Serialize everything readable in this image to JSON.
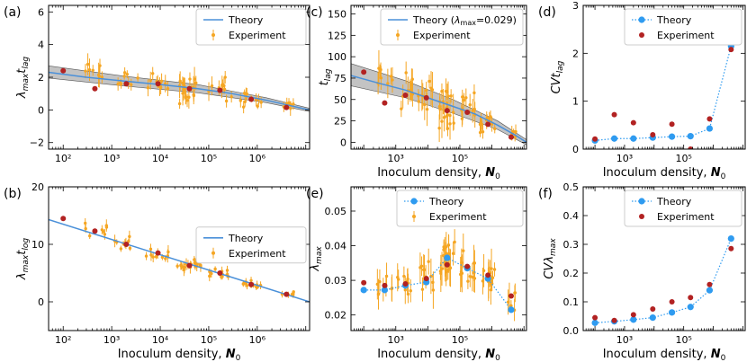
{
  "figure": {
    "colors": {
      "theory": "#4a90d9",
      "experiment": "#f5a623",
      "mean": "#b22222",
      "band": "#a9a9a9",
      "theory_marker": "#2f9bf0"
    }
  },
  "chart_data": [
    {
      "id": "a",
      "panel_label": "(a)",
      "type": "scatter",
      "xscale": "log",
      "xlim": [
        50,
        12000000
      ],
      "ylim": [
        -2.4,
        6.4
      ],
      "xticks": [
        100,
        1000,
        10000,
        100000,
        1000000
      ],
      "xticklabels": [
        "10²",
        "10³",
        "10⁴",
        "10⁵",
        "10⁶"
      ],
      "yticks": [
        -2,
        0,
        2,
        4,
        6
      ],
      "yticklabels": [
        "−2",
        "0",
        "2",
        "4",
        "6"
      ],
      "xlabel": "",
      "ylabel": "λmax tlag",
      "legend_position": "top-right",
      "legend": [
        "Theory",
        "Experiment"
      ],
      "theory": {
        "x": [
          50,
          300,
          2000,
          10000,
          60000,
          300000,
          1500000,
          5000000,
          12000000
        ],
        "y": [
          2.3,
          2.0,
          1.75,
          1.55,
          1.3,
          1.0,
          0.6,
          0.25,
          0.0
        ]
      },
      "band": {
        "x": [
          50,
          2000,
          60000,
          1500000,
          12000000
        ],
        "lower": [
          1.95,
          1.45,
          1.05,
          0.45,
          -0.1
        ],
        "upper": [
          2.7,
          2.05,
          1.55,
          0.75,
          0.1
        ]
      },
      "means": {
        "x": [
          100,
          450,
          2000,
          9000,
          40000,
          170000,
          750000,
          4000000
        ],
        "y": [
          2.4,
          1.3,
          1.6,
          1.6,
          1.3,
          1.2,
          0.65,
          0.15
        ]
      },
      "experiment_clusters": [
        {
          "center_x": 450,
          "center_y": 2.2,
          "count": 8,
          "spread_x": 0.25,
          "spread_y": 0.9,
          "error": 0.5
        },
        {
          "center_x": 2000,
          "center_y": 1.8,
          "count": 9,
          "spread_x": 0.25,
          "spread_y": 0.7,
          "error": 0.4
        },
        {
          "center_x": 9000,
          "center_y": 1.6,
          "count": 10,
          "spread_x": 0.25,
          "spread_y": 0.8,
          "error": 0.4
        },
        {
          "center_x": 40000,
          "center_y": 1.2,
          "count": 20,
          "spread_x": 0.25,
          "spread_y": 1.1,
          "error": 0.5
        },
        {
          "center_x": 170000,
          "center_y": 1.3,
          "count": 12,
          "spread_x": 0.25,
          "spread_y": 0.9,
          "error": 0.4
        },
        {
          "center_x": 750000,
          "center_y": 0.6,
          "count": 12,
          "spread_x": 0.25,
          "spread_y": 0.6,
          "error": 0.3
        },
        {
          "center_x": 4000000,
          "center_y": 0.3,
          "count": 6,
          "spread_x": 0.15,
          "spread_y": 0.4,
          "error": 0.3
        }
      ]
    },
    {
      "id": "b",
      "panel_label": "(b)",
      "type": "scatter",
      "xscale": "log",
      "xlim": [
        50,
        12000000
      ],
      "ylim": [
        -5,
        20
      ],
      "xticks": [
        100,
        1000,
        10000,
        100000,
        1000000
      ],
      "xticklabels": [
        "10²",
        "10³",
        "10⁴",
        "10⁵",
        "10⁶"
      ],
      "yticks": [
        0,
        10,
        20
      ],
      "yticklabels": [
        "0",
        "10",
        "20"
      ],
      "xlabel": "Inoculum density, N0",
      "ylabel": "λmax tlog",
      "legend_position": "center-right",
      "legend": [
        "Theory",
        "Experiment"
      ],
      "theory": {
        "x": [
          50,
          12000000
        ],
        "y": [
          14.3,
          0.0
        ]
      },
      "means": {
        "x": [
          100,
          450,
          2000,
          9000,
          40000,
          170000,
          750000,
          4000000
        ],
        "y": [
          14.5,
          12.3,
          10.0,
          8.5,
          6.3,
          5.0,
          3.0,
          1.3
        ]
      },
      "experiment_clusters": [
        {
          "center_x": 450,
          "center_y": 12.5,
          "count": 8,
          "spread_x": 0.25,
          "spread_y": 1.5,
          "error": 0.8
        },
        {
          "center_x": 2000,
          "center_y": 10.2,
          "count": 9,
          "spread_x": 0.25,
          "spread_y": 1.5,
          "error": 0.8
        },
        {
          "center_x": 9000,
          "center_y": 8.5,
          "count": 10,
          "spread_x": 0.25,
          "spread_y": 1.3,
          "error": 0.8
        },
        {
          "center_x": 40000,
          "center_y": 6.5,
          "count": 20,
          "spread_x": 0.25,
          "spread_y": 1.2,
          "error": 0.8
        },
        {
          "center_x": 170000,
          "center_y": 5.0,
          "count": 12,
          "spread_x": 0.25,
          "spread_y": 1.0,
          "error": 0.6
        },
        {
          "center_x": 750000,
          "center_y": 3.0,
          "count": 12,
          "spread_x": 0.25,
          "spread_y": 0.8,
          "error": 0.5
        },
        {
          "center_x": 4000000,
          "center_y": 1.3,
          "count": 6,
          "spread_x": 0.15,
          "spread_y": 0.5,
          "error": 0.4
        }
      ]
    },
    {
      "id": "c",
      "panel_label": "(c)",
      "type": "scatter",
      "xscale": "log",
      "xlim": [
        40,
        12000000
      ],
      "ylim": [
        -8,
        160
      ],
      "xticks": [
        1000,
        100000
      ],
      "xticklabels": [
        "10³",
        "10⁵"
      ],
      "yticks": [
        0,
        25,
        50,
        75,
        100,
        125,
        150
      ],
      "yticklabels": [
        "0",
        "25",
        "50",
        "75",
        "100",
        "125",
        "150"
      ],
      "xlabel": "Inoculum density, N0",
      "ylabel": "tlag",
      "legend_position": "top-right",
      "legend": [
        "Theory (λmax=0.029)",
        "Experiment"
      ],
      "theory": {
        "x": [
          40,
          300,
          2000,
          10000,
          60000,
          300000,
          1500000,
          5000000,
          12000000
        ],
        "y": [
          78,
          69,
          61,
          52,
          42,
          33,
          20,
          9,
          0
        ]
      },
      "band": {
        "x": [
          40,
          2000,
          60000,
          1500000,
          12000000
        ],
        "lower": [
          66,
          52,
          34,
          15,
          -3
        ],
        "upper": [
          92,
          72,
          50,
          25,
          3
        ]
      },
      "means": {
        "x": [
          100,
          450,
          2000,
          9000,
          40000,
          170000,
          750000,
          4000000
        ],
        "y": [
          82,
          46,
          55,
          52,
          37,
          35,
          21,
          6
        ]
      },
      "experiment_clusters": [
        {
          "center_x": 450,
          "center_y": 70,
          "count": 8,
          "spread_x": 0.25,
          "spread_y": 28,
          "error": 15
        },
        {
          "center_x": 2000,
          "center_y": 60,
          "count": 9,
          "spread_x": 0.25,
          "spread_y": 25,
          "error": 15
        },
        {
          "center_x": 9000,
          "center_y": 55,
          "count": 10,
          "spread_x": 0.25,
          "spread_y": 25,
          "error": 15
        },
        {
          "center_x": 40000,
          "center_y": 42,
          "count": 20,
          "spread_x": 0.25,
          "spread_y": 30,
          "error": 15
        },
        {
          "center_x": 170000,
          "center_y": 40,
          "count": 12,
          "spread_x": 0.25,
          "spread_y": 25,
          "error": 12
        },
        {
          "center_x": 750000,
          "center_y": 22,
          "count": 12,
          "spread_x": 0.25,
          "spread_y": 15,
          "error": 8
        },
        {
          "center_x": 4000000,
          "center_y": 8,
          "count": 6,
          "spread_x": 0.15,
          "spread_y": 8,
          "error": 6
        }
      ]
    },
    {
      "id": "e",
      "panel_label": "(e)",
      "type": "scatter",
      "xscale": "log",
      "xlim": [
        40,
        12000000
      ],
      "ylim": [
        0.0155,
        0.057
      ],
      "xticks": [
        1000,
        100000
      ],
      "xticklabels": [
        "10³",
        "10⁵"
      ],
      "yticks": [
        0.02,
        0.03,
        0.04,
        0.05
      ],
      "yticklabels": [
        "0.02",
        "0.03",
        "0.04",
        "0.05"
      ],
      "xlabel": "Inoculum density, N0",
      "ylabel": "λmax",
      "legend_position": "top-right",
      "legend": [
        "Theory",
        "Experiment"
      ],
      "theory_markers": {
        "x": [
          100,
          450,
          2000,
          9000,
          40000,
          170000,
          750000,
          4000000
        ],
        "y": [
          0.0272,
          0.0272,
          0.0285,
          0.0295,
          0.0365,
          0.0335,
          0.0305,
          0.0215
        ]
      },
      "means": {
        "x": [
          100,
          450,
          2000,
          9000,
          40000,
          170000,
          750000,
          4000000
        ],
        "y": [
          0.0293,
          0.0285,
          0.029,
          0.0305,
          0.0345,
          0.034,
          0.0315,
          0.0255
        ]
      },
      "experiment_clusters": [
        {
          "center_x": 450,
          "center_y": 0.029,
          "count": 8,
          "spread_x": 0.25,
          "spread_y": 0.004,
          "error": 0.003
        },
        {
          "center_x": 2000,
          "center_y": 0.029,
          "count": 9,
          "spread_x": 0.25,
          "spread_y": 0.004,
          "error": 0.003
        },
        {
          "center_x": 9000,
          "center_y": 0.031,
          "count": 10,
          "spread_x": 0.25,
          "spread_y": 0.006,
          "error": 0.004
        },
        {
          "center_x": 40000,
          "center_y": 0.036,
          "count": 20,
          "spread_x": 0.25,
          "spread_y": 0.006,
          "error": 0.004
        },
        {
          "center_x": 170000,
          "center_y": 0.034,
          "count": 12,
          "spread_x": 0.25,
          "spread_y": 0.005,
          "error": 0.004
        },
        {
          "center_x": 750000,
          "center_y": 0.031,
          "count": 12,
          "spread_x": 0.25,
          "spread_y": 0.005,
          "error": 0.004
        },
        {
          "center_x": 4000000,
          "center_y": 0.024,
          "count": 6,
          "spread_x": 0.15,
          "spread_y": 0.004,
          "error": 0.003
        }
      ]
    },
    {
      "id": "d",
      "panel_label": "(d)",
      "type": "scatter",
      "xscale": "log",
      "xlim": [
        40,
        12000000
      ],
      "ylim": [
        0,
        3
      ],
      "xticks": [
        1000,
        100000
      ],
      "xticklabels": [
        "10³",
        "10⁵"
      ],
      "yticks": [
        0,
        1,
        2,
        3
      ],
      "yticklabels": [
        "0",
        "1",
        "2",
        "3"
      ],
      "xlabel": "Inoculum density, N0",
      "ylabel": "CV tlag",
      "legend_position": "top-right",
      "legend": [
        "Theory",
        ""
      ],
      "theory_markers": {
        "x": [
          100,
          450,
          2000,
          9000,
          40000,
          170000,
          750000,
          4000000
        ],
        "y": [
          0.18,
          0.22,
          0.22,
          0.24,
          0.26,
          0.27,
          0.43,
          2.15
        ]
      },
      "means": {
        "x": [
          100,
          450,
          2000,
          9000,
          40000,
          170000,
          750000,
          4000000
        ],
        "y": [
          0.21,
          0.72,
          0.55,
          0.3,
          0.52,
          0.0,
          0.63,
          2.08
        ]
      }
    },
    {
      "id": "f",
      "panel_label": "(f)",
      "type": "scatter",
      "xscale": "log",
      "xlim": [
        40,
        12000000
      ],
      "ylim": [
        0,
        0.5
      ],
      "xticks": [
        1000,
        100000
      ],
      "xticklabels": [
        "10³",
        "10⁵"
      ],
      "yticks": [
        0,
        0.1,
        0.2,
        0.3,
        0.4,
        0.5
      ],
      "yticklabels": [
        "0.0",
        "0.1",
        "0.2",
        "0.3",
        "0.4",
        "0.5"
      ],
      "xlabel": "Inoculum density, N0",
      "ylabel": "CV λmax",
      "legend_position": "top-right",
      "legend": [
        "Theory",
        "Experiment"
      ],
      "theory_markers": {
        "x": [
          100,
          450,
          2000,
          9000,
          40000,
          170000,
          750000,
          4000000
        ],
        "y": [
          0.027,
          0.032,
          0.038,
          0.045,
          0.063,
          0.082,
          0.14,
          0.32
        ]
      },
      "means": {
        "x": [
          100,
          450,
          2000,
          9000,
          40000,
          170000,
          750000,
          4000000
        ],
        "y": [
          0.045,
          0.035,
          0.055,
          0.075,
          0.1,
          0.115,
          0.16,
          0.285
        ]
      }
    }
  ]
}
